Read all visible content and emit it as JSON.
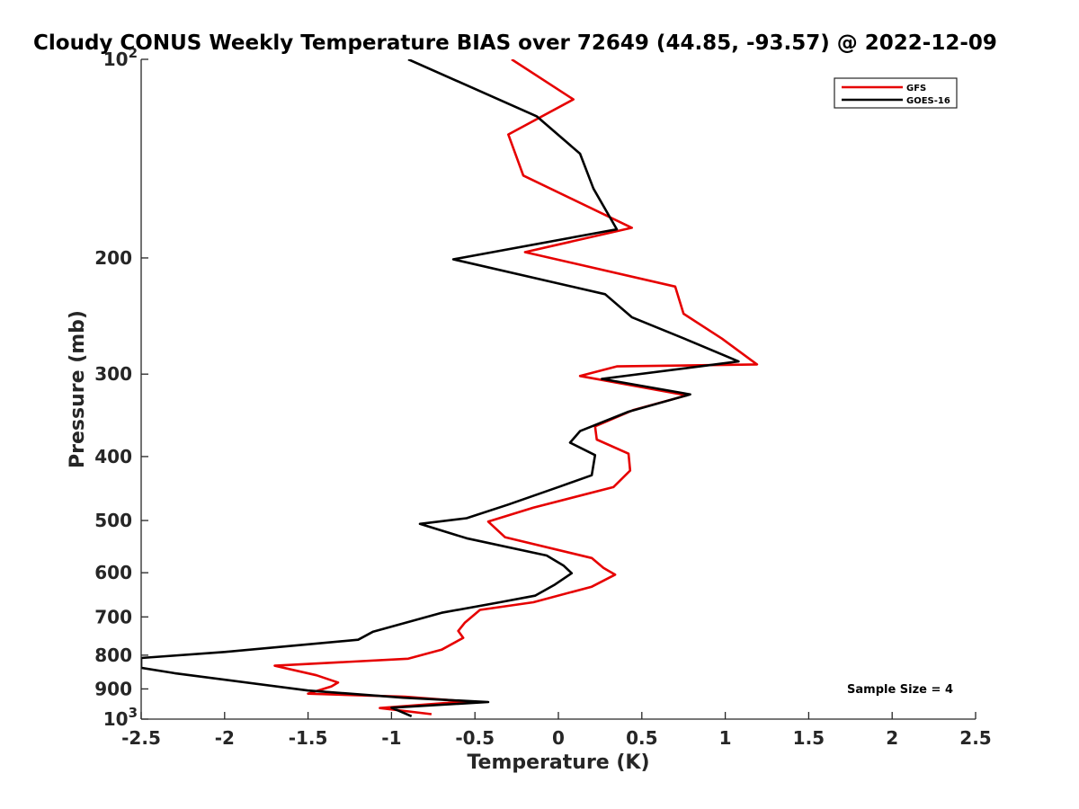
{
  "chart_data": {
    "type": "line",
    "title": "Cloudy CONUS Weekly Temperature BIAS over 72649 (44.85, -93.57) @ 2022-12-09",
    "xlabel": "Temperature (K)",
    "ylabel": "Pressure (mb)",
    "xlim": [
      -2.5,
      2.5
    ],
    "ylim": [
      1000,
      100
    ],
    "y_scale": "log",
    "x_ticks": [
      -2.5,
      -2,
      -1.5,
      -1,
      -0.5,
      0,
      0.5,
      1,
      1.5,
      2,
      2.5
    ],
    "x_tick_labels": [
      "-2.5",
      "-2",
      "-1.5",
      "-1",
      "-0.5",
      "0",
      "0.5",
      "1",
      "1.5",
      "2",
      "2.5"
    ],
    "y_ticks": [
      100,
      200,
      300,
      400,
      500,
      600,
      700,
      800,
      900,
      1000
    ],
    "y_tick_labels": [
      {
        "text": "10",
        "sup": "2"
      },
      {
        "text": "200",
        "sup": ""
      },
      {
        "text": "300",
        "sup": ""
      },
      {
        "text": "400",
        "sup": ""
      },
      {
        "text": "500",
        "sup": ""
      },
      {
        "text": "600",
        "sup": ""
      },
      {
        "text": "700",
        "sup": ""
      },
      {
        "text": "800",
        "sup": ""
      },
      {
        "text": "900",
        "sup": ""
      },
      {
        "text": "10",
        "sup": "3"
      }
    ],
    "grid": false,
    "legend_position": "top-right",
    "annotation": "Sample Size = 4",
    "series": [
      {
        "name": "GFS",
        "color": "#e60000",
        "points": [
          [
            -0.28,
            100
          ],
          [
            0.09,
            115
          ],
          [
            -0.3,
            130
          ],
          [
            -0.21,
            150
          ],
          [
            0.44,
            180
          ],
          [
            -0.2,
            196
          ],
          [
            0.7,
            221
          ],
          [
            0.75,
            243
          ],
          [
            0.98,
            265
          ],
          [
            1.19,
            290
          ],
          [
            0.35,
            292
          ],
          [
            0.13,
            302
          ],
          [
            0.77,
            323
          ],
          [
            0.45,
            340
          ],
          [
            0.22,
            360
          ],
          [
            0.23,
            377
          ],
          [
            0.42,
            396
          ],
          [
            0.43,
            420
          ],
          [
            0.33,
            445
          ],
          [
            -0.15,
            478
          ],
          [
            -0.42,
            502
          ],
          [
            -0.32,
            530
          ],
          [
            0.2,
            570
          ],
          [
            0.27,
            590
          ],
          [
            0.34,
            604
          ],
          [
            0.2,
            630
          ],
          [
            -0.15,
            665
          ],
          [
            -0.47,
            683
          ],
          [
            -0.56,
            714
          ],
          [
            -0.6,
            735
          ],
          [
            -0.57,
            753
          ],
          [
            -0.7,
            785
          ],
          [
            -0.9,
            810
          ],
          [
            -1.7,
            830
          ],
          [
            -1.45,
            858
          ],
          [
            -1.32,
            880
          ],
          [
            -1.36,
            892
          ],
          [
            -1.5,
            915
          ],
          [
            -0.92,
            925
          ],
          [
            -0.55,
            940
          ],
          [
            -1.07,
            962
          ],
          [
            -0.76,
            983
          ]
        ]
      },
      {
        "name": "GOES-16",
        "color": "#000000",
        "points": [
          [
            -0.9,
            100
          ],
          [
            -0.13,
            122
          ],
          [
            0.13,
            139
          ],
          [
            0.21,
            157
          ],
          [
            0.35,
            181
          ],
          [
            -0.63,
            201
          ],
          [
            0.28,
            227
          ],
          [
            0.44,
            246
          ],
          [
            0.77,
            266
          ],
          [
            1.08,
            287
          ],
          [
            0.26,
            305
          ],
          [
            0.79,
            322
          ],
          [
            0.42,
            342
          ],
          [
            0.13,
            366
          ],
          [
            0.07,
            381
          ],
          [
            0.22,
            398
          ],
          [
            0.2,
            427
          ],
          [
            0.01,
            444
          ],
          [
            -0.3,
            473
          ],
          [
            -0.55,
            496
          ],
          [
            -0.83,
            506
          ],
          [
            -0.55,
            532
          ],
          [
            -0.07,
            565
          ],
          [
            0.03,
            585
          ],
          [
            0.08,
            601
          ],
          [
            -0.02,
            625
          ],
          [
            -0.14,
            650
          ],
          [
            -0.35,
            665
          ],
          [
            -0.7,
            690
          ],
          [
            -1.11,
            737
          ],
          [
            -1.2,
            758
          ],
          [
            -2,
            791
          ],
          [
            -2.5,
            808
          ],
          [
            -2.5,
            836
          ],
          [
            -2.3,
            852
          ],
          [
            -1.5,
            905
          ],
          [
            -0.93,
            928
          ],
          [
            -0.42,
            942
          ],
          [
            -1.0,
            961
          ],
          [
            -0.88,
            990
          ]
        ]
      }
    ]
  }
}
